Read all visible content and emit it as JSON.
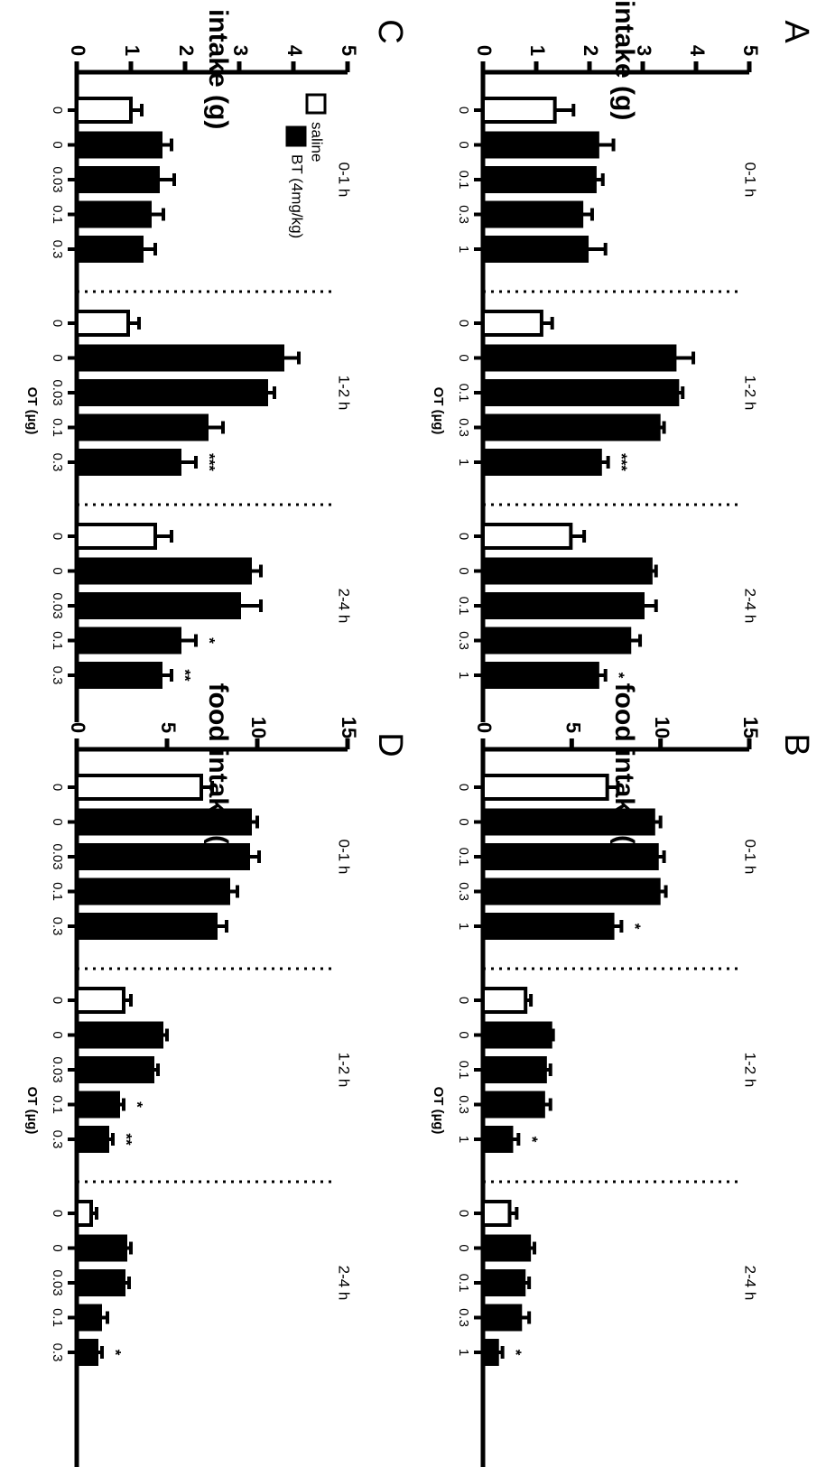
{
  "chart_data": [
    {
      "panel": "A",
      "type": "bar",
      "ylabel": "food intake (g)",
      "xlabel": "OT (µg)",
      "ylim": [
        0,
        5
      ],
      "yticks": [
        0,
        1,
        2,
        3,
        4,
        5
      ],
      "groups": [
        {
          "label": "0-1 h",
          "bars": [
            {
              "x": "0",
              "treatment": "saline",
              "value": 1.35,
              "error": 0.35,
              "sig": ""
            },
            {
              "x": "0",
              "treatment": "BT",
              "value": 2.15,
              "error": 0.3,
              "sig": ""
            },
            {
              "x": "0.1",
              "treatment": "BT",
              "value": 2.1,
              "error": 0.15,
              "sig": ""
            },
            {
              "x": "0.3",
              "treatment": "BT",
              "value": 1.85,
              "error": 0.2,
              "sig": ""
            },
            {
              "x": "1",
              "treatment": "BT",
              "value": 1.95,
              "error": 0.35,
              "sig": ""
            }
          ]
        },
        {
          "label": "1-2 h",
          "bars": [
            {
              "x": "0",
              "treatment": "saline",
              "value": 1.1,
              "error": 0.2,
              "sig": ""
            },
            {
              "x": "0",
              "treatment": "BT",
              "value": 3.6,
              "error": 0.35,
              "sig": ""
            },
            {
              "x": "0.1",
              "treatment": "BT",
              "value": 3.65,
              "error": 0.1,
              "sig": ""
            },
            {
              "x": "0.3",
              "treatment": "BT",
              "value": 3.3,
              "error": 0.1,
              "sig": ""
            },
            {
              "x": "1",
              "treatment": "BT",
              "value": 2.2,
              "error": 0.15,
              "sig": "***"
            }
          ]
        },
        {
          "label": "2-4 h",
          "bars": [
            {
              "x": "0",
              "treatment": "saline",
              "value": 1.65,
              "error": 0.25,
              "sig": ""
            },
            {
              "x": "0",
              "treatment": "BT",
              "value": 3.15,
              "error": 0.1,
              "sig": ""
            },
            {
              "x": "0.1",
              "treatment": "BT",
              "value": 3.0,
              "error": 0.25,
              "sig": ""
            },
            {
              "x": "0.3",
              "treatment": "BT",
              "value": 2.75,
              "error": 0.2,
              "sig": ""
            },
            {
              "x": "1",
              "treatment": "BT",
              "value": 2.15,
              "error": 0.15,
              "sig": "*"
            }
          ]
        }
      ]
    },
    {
      "panel": "B",
      "type": "bar",
      "ylabel": "food intake (g)",
      "xlabel": "OT (µg)",
      "ylim": [
        0,
        15
      ],
      "yticks": [
        0,
        5,
        10,
        15
      ],
      "groups": [
        {
          "label": "0-1 h",
          "bars": [
            {
              "x": "0",
              "treatment": "saline",
              "value": 7.0,
              "error": 0.6,
              "sig": ""
            },
            {
              "x": "0",
              "treatment": "BT",
              "value": 9.6,
              "error": 0.4,
              "sig": ""
            },
            {
              "x": "0.1",
              "treatment": "BT",
              "value": 9.8,
              "error": 0.4,
              "sig": ""
            },
            {
              "x": "0.3",
              "treatment": "BT",
              "value": 9.9,
              "error": 0.4,
              "sig": ""
            },
            {
              "x": "1",
              "treatment": "BT",
              "value": 7.3,
              "error": 0.5,
              "sig": "*"
            }
          ]
        },
        {
          "label": "1-2 h",
          "bars": [
            {
              "x": "0",
              "treatment": "saline",
              "value": 2.4,
              "error": 0.3,
              "sig": ""
            },
            {
              "x": "0",
              "treatment": "BT",
              "value": 3.8,
              "error": 0.15,
              "sig": ""
            },
            {
              "x": "0.1",
              "treatment": "BT",
              "value": 3.5,
              "error": 0.3,
              "sig": ""
            },
            {
              "x": "0.3",
              "treatment": "BT",
              "value": 3.4,
              "error": 0.4,
              "sig": ""
            },
            {
              "x": "1",
              "treatment": "BT",
              "value": 1.6,
              "error": 0.4,
              "sig": "*"
            }
          ]
        },
        {
          "label": "2-4 h",
          "bars": [
            {
              "x": "0",
              "treatment": "saline",
              "value": 1.5,
              "error": 0.4,
              "sig": ""
            },
            {
              "x": "0",
              "treatment": "BT",
              "value": 2.6,
              "error": 0.3,
              "sig": ""
            },
            {
              "x": "0.1",
              "treatment": "BT",
              "value": 2.3,
              "error": 0.3,
              "sig": ""
            },
            {
              "x": "0.3",
              "treatment": "BT",
              "value": 2.1,
              "error": 0.5,
              "sig": ""
            },
            {
              "x": "1",
              "treatment": "BT",
              "value": 0.8,
              "error": 0.3,
              "sig": "*"
            }
          ]
        }
      ]
    },
    {
      "panel": "C",
      "type": "bar",
      "ylabel": "food intake (g)",
      "xlabel": "OT (µg)",
      "ylim": [
        0,
        5
      ],
      "yticks": [
        0,
        1,
        2,
        3,
        4,
        5
      ],
      "legend": [
        {
          "label": "saline",
          "fill": "#ffffff"
        },
        {
          "label": "BT (4mg/kg)",
          "fill": "#000000"
        }
      ],
      "groups": [
        {
          "label": "0-1 h",
          "bars": [
            {
              "x": "0",
              "treatment": "saline",
              "value": 1.0,
              "error": 0.2,
              "sig": ""
            },
            {
              "x": "0",
              "treatment": "BT",
              "value": 1.55,
              "error": 0.2,
              "sig": ""
            },
            {
              "x": "0.03",
              "treatment": "BT",
              "value": 1.5,
              "error": 0.3,
              "sig": ""
            },
            {
              "x": "0.1",
              "treatment": "BT",
              "value": 1.35,
              "error": 0.25,
              "sig": ""
            },
            {
              "x": "0.3",
              "treatment": "BT",
              "value": 1.2,
              "error": 0.25,
              "sig": ""
            }
          ]
        },
        {
          "label": "1-2 h",
          "bars": [
            {
              "x": "0",
              "treatment": "saline",
              "value": 0.95,
              "error": 0.2,
              "sig": ""
            },
            {
              "x": "0",
              "treatment": "BT",
              "value": 3.8,
              "error": 0.3,
              "sig": ""
            },
            {
              "x": "0.03",
              "treatment": "BT",
              "value": 3.5,
              "error": 0.15,
              "sig": ""
            },
            {
              "x": "0.1",
              "treatment": "BT",
              "value": 2.4,
              "error": 0.3,
              "sig": ""
            },
            {
              "x": "0.3",
              "treatment": "BT",
              "value": 1.9,
              "error": 0.3,
              "sig": "***"
            }
          ]
        },
        {
          "label": "2-4 h",
          "bars": [
            {
              "x": "0",
              "treatment": "saline",
              "value": 1.45,
              "error": 0.3,
              "sig": ""
            },
            {
              "x": "0",
              "treatment": "BT",
              "value": 3.2,
              "error": 0.2,
              "sig": ""
            },
            {
              "x": "0.03",
              "treatment": "BT",
              "value": 3.0,
              "error": 0.4,
              "sig": ""
            },
            {
              "x": "0.1",
              "treatment": "BT",
              "value": 1.9,
              "error": 0.3,
              "sig": "*"
            },
            {
              "x": "0.3",
              "treatment": "BT",
              "value": 1.55,
              "error": 0.2,
              "sig": "**"
            }
          ]
        }
      ]
    },
    {
      "panel": "D",
      "type": "bar",
      "ylabel": "food intake (g)",
      "xlabel": "OT (µg)",
      "ylim": [
        0,
        15
      ],
      "yticks": [
        0,
        5,
        10,
        15
      ],
      "groups": [
        {
          "label": "0-1 h",
          "bars": [
            {
              "x": "0",
              "treatment": "saline",
              "value": 6.9,
              "error": 0.6,
              "sig": ""
            },
            {
              "x": "0",
              "treatment": "BT",
              "value": 9.6,
              "error": 0.4,
              "sig": ""
            },
            {
              "x": "0.03",
              "treatment": "BT",
              "value": 9.5,
              "error": 0.6,
              "sig": ""
            },
            {
              "x": "0.1",
              "treatment": "BT",
              "value": 8.4,
              "error": 0.5,
              "sig": ""
            },
            {
              "x": "0.3",
              "treatment": "BT",
              "value": 7.7,
              "error": 0.6,
              "sig": ""
            }
          ]
        },
        {
          "label": "1-2 h",
          "bars": [
            {
              "x": "0",
              "treatment": "saline",
              "value": 2.6,
              "error": 0.4,
              "sig": ""
            },
            {
              "x": "0",
              "treatment": "BT",
              "value": 4.7,
              "error": 0.3,
              "sig": ""
            },
            {
              "x": "0.03",
              "treatment": "BT",
              "value": 4.2,
              "error": 0.3,
              "sig": ""
            },
            {
              "x": "0.1",
              "treatment": "BT",
              "value": 2.3,
              "error": 0.3,
              "sig": "*"
            },
            {
              "x": "0.3",
              "treatment": "BT",
              "value": 1.7,
              "error": 0.3,
              "sig": "**"
            }
          ]
        },
        {
          "label": "2-4 h",
          "bars": [
            {
              "x": "0",
              "treatment": "saline",
              "value": 0.8,
              "error": 0.3,
              "sig": ""
            },
            {
              "x": "0",
              "treatment": "BT",
              "value": 2.7,
              "error": 0.3,
              "sig": ""
            },
            {
              "x": "0.03",
              "treatment": "BT",
              "value": 2.6,
              "error": 0.3,
              "sig": ""
            },
            {
              "x": "0.1",
              "treatment": "BT",
              "value": 1.3,
              "error": 0.4,
              "sig": ""
            },
            {
              "x": "0.3",
              "treatment": "BT",
              "value": 1.1,
              "error": 0.3,
              "sig": "*"
            }
          ]
        }
      ]
    }
  ]
}
